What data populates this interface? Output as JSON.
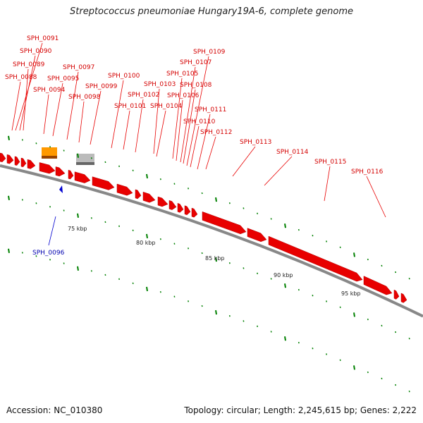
{
  "title": "Streptococcus pneumoniae Hungary19A-6, complete genome",
  "footer": {
    "accession": "Accession: NC_010380",
    "topology": "Topology: circular; Length: 2,245,615 bp; Genes: 2,222"
  },
  "colors": {
    "forward_gene": "#e80000",
    "reverse_gene": "#0000d0",
    "tick": "#008000",
    "backbone": "#888888",
    "orange_feature": "#ff9900",
    "grey_feature": "#bbbbbb"
  },
  "scale_labels": [
    "75 kbp",
    "80 kbp",
    "85 kbp",
    "90 kbp",
    "95 kbp"
  ],
  "forward_genes": [
    "SPH_0088",
    "SPH_0089",
    "SPH_0090",
    "SPH_0091",
    "SPH_0094",
    "SPH_0095",
    "SPH_0097",
    "SPH_0098",
    "SPH_0099",
    "SPH_0100",
    "SPH_0101",
    "SPH_0102",
    "SPH_0103",
    "SPH_0104",
    "SPH_0105",
    "SPH_0106",
    "SPH_0107",
    "SPH_0108",
    "SPH_0109",
    "SPH_0110",
    "SPH_0111",
    "SPH_0112",
    "SPH_0113",
    "SPH_0114",
    "SPH_0115",
    "SPH_0116"
  ],
  "reverse_genes": [
    "SPH_0096"
  ]
}
